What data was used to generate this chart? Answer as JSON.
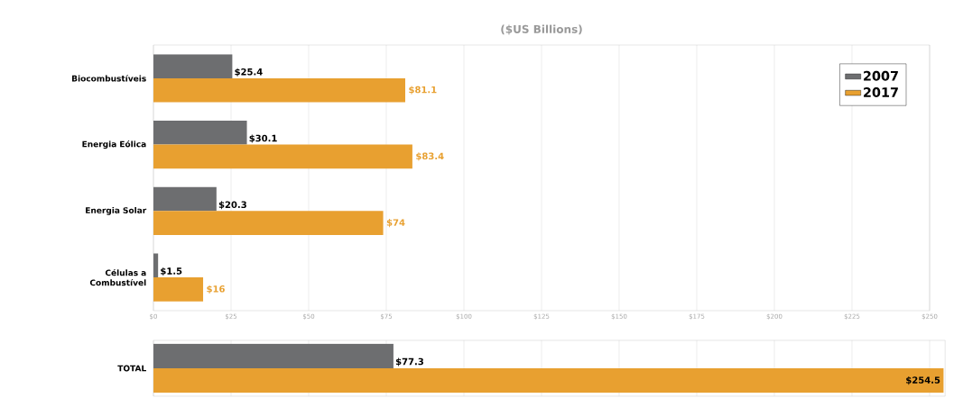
{
  "chart_data": [
    {
      "type": "bar",
      "orientation": "horizontal",
      "title": "($US Billions)",
      "categories": [
        "Biocombustíveis",
        "Energia Eólica",
        "Energia Solar",
        "Células a Combustível"
      ],
      "series": [
        {
          "name": "2007",
          "color": "#6d6e70",
          "values": [
            25.4,
            30.1,
            20.3,
            1.5
          ],
          "value_labels": [
            "$25.4",
            "$30.1",
            "$20.3",
            "$1.5"
          ]
        },
        {
          "name": "2017",
          "color": "#e8a030",
          "values": [
            81.1,
            83.4,
            74,
            16
          ],
          "value_labels": [
            "$81.1",
            "$83.4",
            "$74",
            "$16"
          ]
        }
      ],
      "xlim": [
        0,
        250
      ],
      "xticks": [
        {
          "value": 0,
          "label": "$0"
        },
        {
          "value": 25,
          "label": "$25"
        },
        {
          "value": 50,
          "label": "$50"
        },
        {
          "value": 75,
          "label": "$75"
        },
        {
          "value": 100,
          "label": "$100"
        },
        {
          "value": 125,
          "label": "$125"
        },
        {
          "value": 150,
          "label": "$150"
        },
        {
          "value": 175,
          "label": "$175"
        },
        {
          "value": 200,
          "label": "$200"
        },
        {
          "value": 225,
          "label": "$225"
        },
        {
          "value": 250,
          "label": "$250"
        }
      ],
      "grid": "x",
      "legend": "top right"
    },
    {
      "type": "bar",
      "orientation": "horizontal",
      "categories": [
        "TOTAL"
      ],
      "series": [
        {
          "color": "#6d6e70",
          "values": [
            77.3
          ],
          "value_labels": [
            "$77.3"
          ]
        },
        {
          "color": "#e8a030",
          "values": [
            254.5
          ],
          "value_labels": [
            "$254.5"
          ]
        }
      ],
      "xlim": [
        0,
        255
      ],
      "xticks": [
        {
          "value": 0,
          "label": null
        },
        {
          "value": 25,
          "label": null
        },
        {
          "value": 50,
          "label": null
        },
        {
          "value": 75,
          "label": null
        },
        {
          "value": 100,
          "label": null
        },
        {
          "value": 125,
          "label": null
        },
        {
          "value": 150,
          "label": null
        },
        {
          "value": 175,
          "label": null
        },
        {
          "value": 200,
          "label": null
        },
        {
          "value": 225,
          "label": null
        },
        {
          "value": 250,
          "label": null
        }
      ],
      "grid": "x",
      "tick_labels": "y"
    }
  ]
}
